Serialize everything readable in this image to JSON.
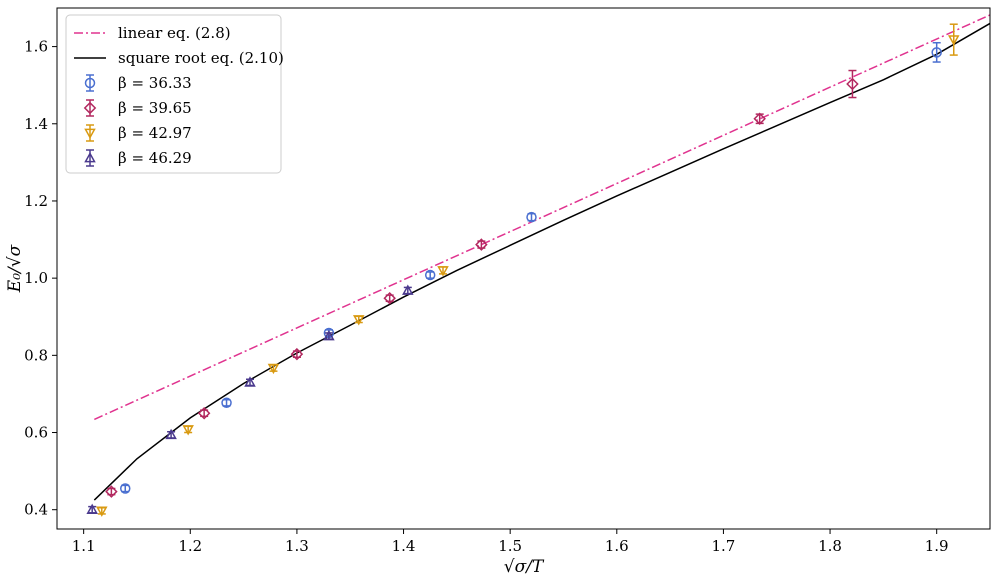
{
  "chart_data": {
    "type": "scatter",
    "xlabel": "√σ/T",
    "ylabel": "E₀/√σ",
    "xlim": [
      1.075,
      1.95
    ],
    "ylim": [
      0.35,
      1.7
    ],
    "x_ticks": [
      "1.1",
      "1.2",
      "1.3",
      "1.4",
      "1.5",
      "1.6",
      "1.7",
      "1.8",
      "1.9"
    ],
    "y_ticks": [
      "0.4",
      "0.6",
      "0.8",
      "1.0",
      "1.2",
      "1.4",
      "1.6"
    ],
    "grid": false,
    "legend_position": "top-left",
    "lines": [
      {
        "name": "linear eq. (2.8)",
        "style": "dashdot",
        "color": "#e0338f",
        "x": [
          1.11,
          1.95
        ],
        "y": [
          0.634,
          1.682
        ]
      },
      {
        "name": "square root eq. (2.10)",
        "style": "solid",
        "color": "#000000",
        "x": [
          1.11,
          1.15,
          1.2,
          1.25,
          1.3,
          1.35,
          1.4,
          1.45,
          1.5,
          1.55,
          1.6,
          1.65,
          1.7,
          1.75,
          1.8,
          1.85,
          1.9,
          1.95
        ],
        "y": [
          0.425,
          0.532,
          0.638,
          0.727,
          0.806,
          0.878,
          0.951,
          1.02,
          1.085,
          1.15,
          1.213,
          1.274,
          1.335,
          1.395,
          1.455,
          1.514,
          1.58,
          1.66
        ]
      }
    ],
    "series": [
      {
        "name": "β = 36.33",
        "marker": "circle",
        "color": "#4a6fd0",
        "points": [
          {
            "x": 1.139,
            "y": 0.455,
            "err": 0.008
          },
          {
            "x": 1.234,
            "y": 0.677,
            "err": 0.008
          },
          {
            "x": 1.33,
            "y": 0.858,
            "err": 0.008
          },
          {
            "x": 1.425,
            "y": 1.008,
            "err": 0.008
          },
          {
            "x": 1.52,
            "y": 1.158,
            "err": 0.009
          },
          {
            "x": 1.9,
            "y": 1.585,
            "err": 0.025
          }
        ]
      },
      {
        "name": "β = 39.65",
        "marker": "diamond",
        "color": "#b2285f",
        "points": [
          {
            "x": 1.126,
            "y": 0.447,
            "err": 0.008
          },
          {
            "x": 1.213,
            "y": 0.65,
            "err": 0.008
          },
          {
            "x": 1.3,
            "y": 0.803,
            "err": 0.008
          },
          {
            "x": 1.387,
            "y": 0.948,
            "err": 0.008
          },
          {
            "x": 1.473,
            "y": 1.087,
            "err": 0.009
          },
          {
            "x": 1.734,
            "y": 1.413,
            "err": 0.012
          },
          {
            "x": 1.821,
            "y": 1.503,
            "err": 0.035
          }
        ]
      },
      {
        "name": "β = 42.97",
        "marker": "triangle-down",
        "color": "#d99a12",
        "points": [
          {
            "x": 1.117,
            "y": 0.397,
            "err": 0.008
          },
          {
            "x": 1.198,
            "y": 0.608,
            "err": 0.008
          },
          {
            "x": 1.278,
            "y": 0.767,
            "err": 0.008
          },
          {
            "x": 1.358,
            "y": 0.893,
            "err": 0.008
          },
          {
            "x": 1.437,
            "y": 1.02,
            "err": 0.009
          },
          {
            "x": 1.916,
            "y": 1.618,
            "err": 0.04
          }
        ]
      },
      {
        "name": "β = 46.29",
        "marker": "triangle-up",
        "color": "#4b3a8e",
        "points": [
          {
            "x": 1.108,
            "y": 0.4,
            "err": 0.008
          },
          {
            "x": 1.182,
            "y": 0.594,
            "err": 0.008
          },
          {
            "x": 1.256,
            "y": 0.73,
            "err": 0.008
          },
          {
            "x": 1.33,
            "y": 0.85,
            "err": 0.008
          },
          {
            "x": 1.404,
            "y": 0.968,
            "err": 0.008
          }
        ]
      }
    ]
  }
}
